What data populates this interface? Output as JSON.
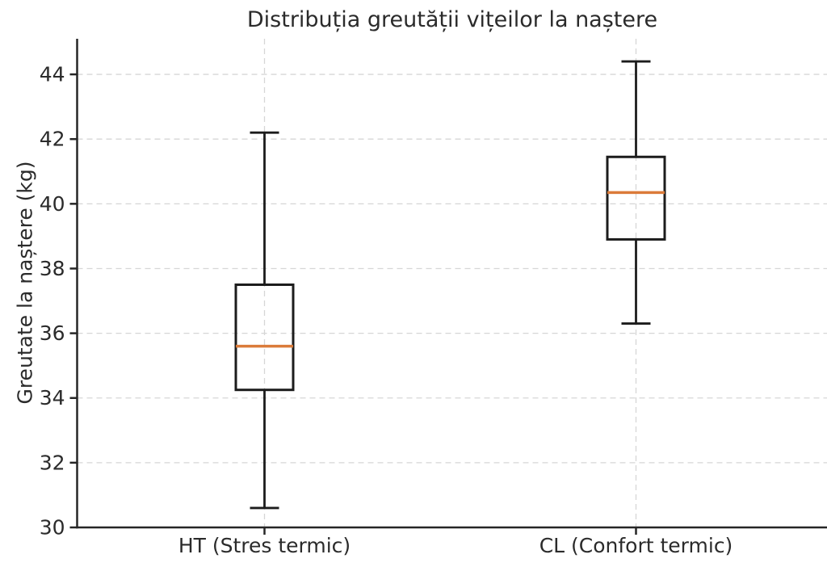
{
  "figure": {
    "background": "#ffffff",
    "text_color": "#2b2b2b",
    "grid_color": "#d6d6d6",
    "spine_color": "#262626",
    "box_color": "#1c1c1c",
    "median_color": "#db7b3a"
  },
  "chart_data": {
    "type": "boxplot",
    "title": "Distribuția greutății vițeilor la naștere",
    "xlabel": "",
    "ylabel": "Greutate la naștere (kg)",
    "categories": [
      "HT (Stres termic)",
      "CL (Confort termic)"
    ],
    "yticks": [
      30,
      32,
      34,
      36,
      38,
      40,
      42,
      44
    ],
    "ylim": [
      30,
      45.1
    ],
    "grid": true,
    "legend": "none",
    "series": [
      {
        "name": "HT (Stres termic)",
        "whisker_low": 30.6,
        "q1": 34.25,
        "median": 35.6,
        "q3": 37.5,
        "whisker_high": 42.2,
        "outliers": []
      },
      {
        "name": "CL (Confort termic)",
        "whisker_low": 36.3,
        "q1": 38.9,
        "median": 40.35,
        "q3": 41.45,
        "whisker_high": 44.4,
        "outliers": []
      }
    ]
  }
}
